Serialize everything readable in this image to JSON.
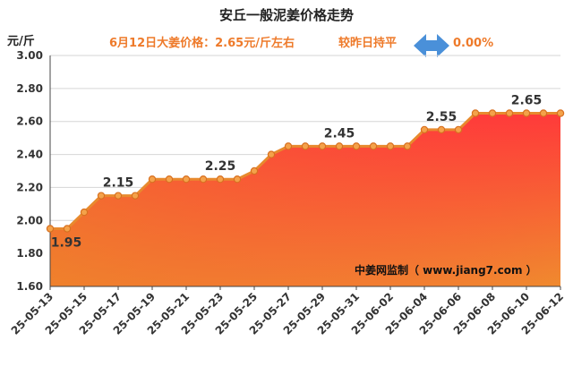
{
  "chart_data": {
    "type": "area",
    "title": "安丘一般泥姜价格走势",
    "subtitle": "6月12日大姜价格：2.65元/斤左右",
    "compare_label": "较昨日持平",
    "change_percent": "0.00%",
    "ylabel": "元/斤",
    "ylim": [
      1.6,
      3.0
    ],
    "y_ticks": [
      "3.00",
      "2.80",
      "2.60",
      "2.40",
      "2.20",
      "2.00",
      "1.80",
      "1.60"
    ],
    "x_tick_labels": [
      "25-05-13",
      "25-05-15",
      "25-05-17",
      "25-05-19",
      "25-05-21",
      "25-05-23",
      "25-05-25",
      "25-05-27",
      "25-05-29",
      "25-05-31",
      "25-06-02",
      "25-06-04",
      "25-06-06",
      "25-06-08",
      "25-06-10",
      "25-06-12"
    ],
    "dates": [
      "25-05-13",
      "25-05-14",
      "25-05-15",
      "25-05-16",
      "25-05-17",
      "25-05-18",
      "25-05-19",
      "25-05-20",
      "25-05-21",
      "25-05-22",
      "25-05-23",
      "25-05-24",
      "25-05-25",
      "25-05-26",
      "25-05-27",
      "25-05-28",
      "25-05-29",
      "25-05-30",
      "25-05-31",
      "25-06-01",
      "25-06-02",
      "25-06-03",
      "25-06-04",
      "25-06-05",
      "25-06-06",
      "25-06-07",
      "25-06-08",
      "25-06-09",
      "25-06-10",
      "25-06-11",
      "25-06-12"
    ],
    "values": [
      1.95,
      1.95,
      2.05,
      2.15,
      2.15,
      2.15,
      2.25,
      2.25,
      2.25,
      2.25,
      2.25,
      2.25,
      2.3,
      2.4,
      2.45,
      2.45,
      2.45,
      2.45,
      2.45,
      2.45,
      2.45,
      2.45,
      2.55,
      2.55,
      2.55,
      2.65,
      2.65,
      2.65,
      2.65,
      2.65,
      2.65
    ],
    "data_labels": [
      {
        "date": "25-05-13",
        "text": "1.95"
      },
      {
        "date": "25-05-17",
        "text": "2.15"
      },
      {
        "date": "25-05-23",
        "text": "2.25"
      },
      {
        "date": "25-05-30",
        "text": "2.45"
      },
      {
        "date": "25-06-05",
        "text": "2.55"
      },
      {
        "date": "25-06-10",
        "text": "2.65"
      }
    ],
    "watermark": "中姜网监制（ www.jiang7.com ）",
    "grid": true,
    "colors": {
      "line": "#e88a2e",
      "marker_fill": "#f4a24a",
      "fill_top": "#ff3a3a",
      "fill_bottom": "#f08a2e",
      "subtitle": "#ee7a2a",
      "arrow": "#4a90d9"
    }
  }
}
